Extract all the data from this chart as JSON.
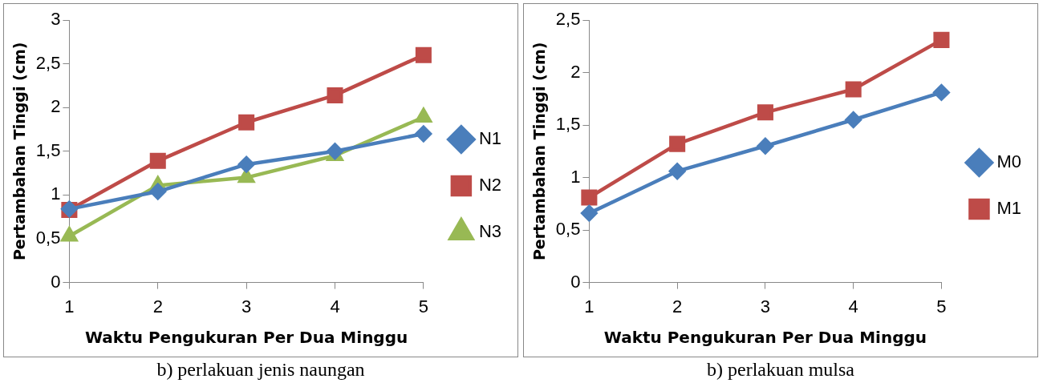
{
  "chart_data": [
    {
      "type": "line",
      "xlabel": "Waktu Pengukuran Per Dua Minggu",
      "ylabel": "Pertambahan Tinggi (cm)",
      "categories": [
        "1",
        "2",
        "3",
        "4",
        "5"
      ],
      "series": [
        {
          "name": "N1",
          "color": "#4a7ebb",
          "marker": "diamond",
          "values": [
            0.84,
            1.04,
            1.35,
            1.5,
            1.7
          ]
        },
        {
          "name": "N2",
          "color": "#be4b48",
          "marker": "square",
          "values": [
            0.83,
            1.39,
            1.83,
            2.14,
            2.6
          ]
        },
        {
          "name": "N3",
          "color": "#98b954",
          "marker": "triangle",
          "values": [
            0.53,
            1.11,
            1.2,
            1.45,
            1.89
          ]
        }
      ],
      "ylim": [
        0,
        3
      ],
      "yticks": [
        0,
        {
          "value": 0.5,
          "label": "0,5"
        },
        1,
        {
          "value": 1.5,
          "label": "1,5"
        },
        2,
        {
          "value": 2.5,
          "label": "2,5"
        },
        3
      ],
      "grid": false,
      "legend": "right",
      "line_style": "solid",
      "annotations": [
        "b) perlakuan jenis naungan"
      ]
    },
    {
      "type": "line",
      "xlabel": "Waktu Pengukuran Per Dua Minggu",
      "ylabel": "Pertambahan Tinggi (cm)",
      "categories": [
        "1",
        "2",
        "3",
        "4",
        "5"
      ],
      "series": [
        {
          "name": "M0",
          "color": "#4a7ebb",
          "marker": "diamond",
          "values": [
            0.66,
            1.06,
            1.3,
            1.55,
            1.81
          ]
        },
        {
          "name": "M1",
          "color": "#be4b48",
          "marker": "square",
          "values": [
            0.81,
            1.32,
            1.62,
            1.84,
            2.31
          ]
        }
      ],
      "ylim": [
        0,
        2.5
      ],
      "yticks": [
        0,
        {
          "value": 0.5,
          "label": "0,5"
        },
        1,
        {
          "value": 1.5,
          "label": "1,5"
        },
        2,
        {
          "value": 2.5,
          "label": "2,5"
        }
      ],
      "grid": false,
      "legend": "right",
      "line_style": "solid",
      "annotations": [
        "b) perlakuan mulsa"
      ]
    }
  ]
}
